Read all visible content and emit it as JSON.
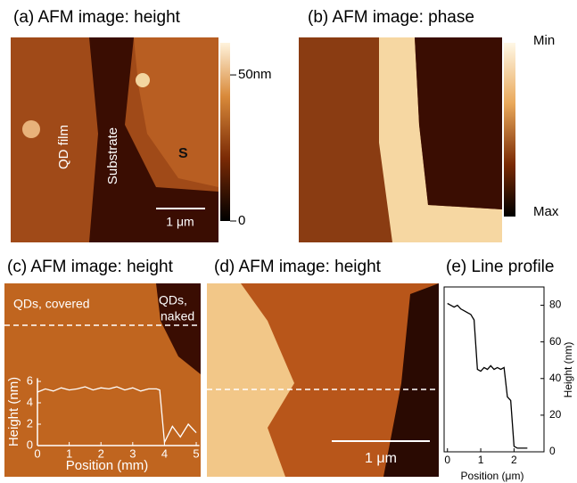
{
  "panel_a": {
    "title": "(a) AFM image: height",
    "labels": [
      "QD film",
      "Substrate",
      "S"
    ],
    "scale_bar": "1 μm",
    "colorbar": {
      "lim": [
        0,
        61
      ],
      "ticks": [
        {
          "value": 50,
          "label": "50nm"
        },
        0
      ]
    }
  },
  "panel_b": {
    "title": "(b) AFM image: phase",
    "colorbar": {
      "min_label": "Min",
      "max_label": "Max"
    }
  },
  "panel_c": {
    "title": "(c)  AFM image: height",
    "labels": [
      "QDs, covered",
      "QDs,",
      "naked"
    ],
    "inset": {
      "type": "line",
      "xlabel": "Position (mm)",
      "ylabel": "Height (nm)",
      "xlim": [
        0,
        5.1
      ],
      "ylim": [
        0,
        6.3
      ],
      "xticks": [
        0,
        1,
        2,
        3,
        4,
        5
      ],
      "yticks": [
        0,
        2,
        4,
        6
      ],
      "color": "#ffffff",
      "x": [
        0,
        0.25,
        0.5,
        0.75,
        1,
        1.25,
        1.5,
        1.75,
        2,
        2.25,
        2.5,
        2.75,
        3,
        3.25,
        3.5,
        3.75,
        3.85,
        4,
        4.25,
        4.5,
        4.75,
        5
      ],
      "values": [
        5,
        5.3,
        5.1,
        5.4,
        5.2,
        5.3,
        5.5,
        5.2,
        5.4,
        5.3,
        5.5,
        5.2,
        5.4,
        5.1,
        5.3,
        5.3,
        5.2,
        0.3,
        1.8,
        0.8,
        2,
        1.2
      ]
    }
  },
  "panel_d": {
    "title": "(d) AFM image: height",
    "scale_bar": "1 μm"
  },
  "panel_e": {
    "title": "(e) Line profile",
    "chart": {
      "type": "line",
      "xlabel": "Position (μm)",
      "ylabel": "Height (nm)",
      "xlim": [
        -0.1,
        2.9
      ],
      "ylim": [
        0,
        90
      ],
      "xticks": [
        0,
        1,
        2
      ],
      "yticks": [
        0,
        20,
        40,
        60,
        80
      ],
      "color": "#000000",
      "x": [
        0,
        0.1,
        0.2,
        0.3,
        0.4,
        0.5,
        0.6,
        0.7,
        0.8,
        0.9,
        1,
        1.1,
        1.2,
        1.3,
        1.4,
        1.5,
        1.6,
        1.7,
        1.8,
        1.9,
        2,
        2.1,
        2.2,
        2.3,
        2.4
      ],
      "values": [
        81,
        80,
        79,
        80,
        78,
        77,
        76,
        75,
        72,
        45,
        44,
        46,
        45,
        47,
        45,
        46,
        45,
        46,
        30,
        28,
        3,
        2,
        2,
        2,
        2
      ]
    }
  }
}
